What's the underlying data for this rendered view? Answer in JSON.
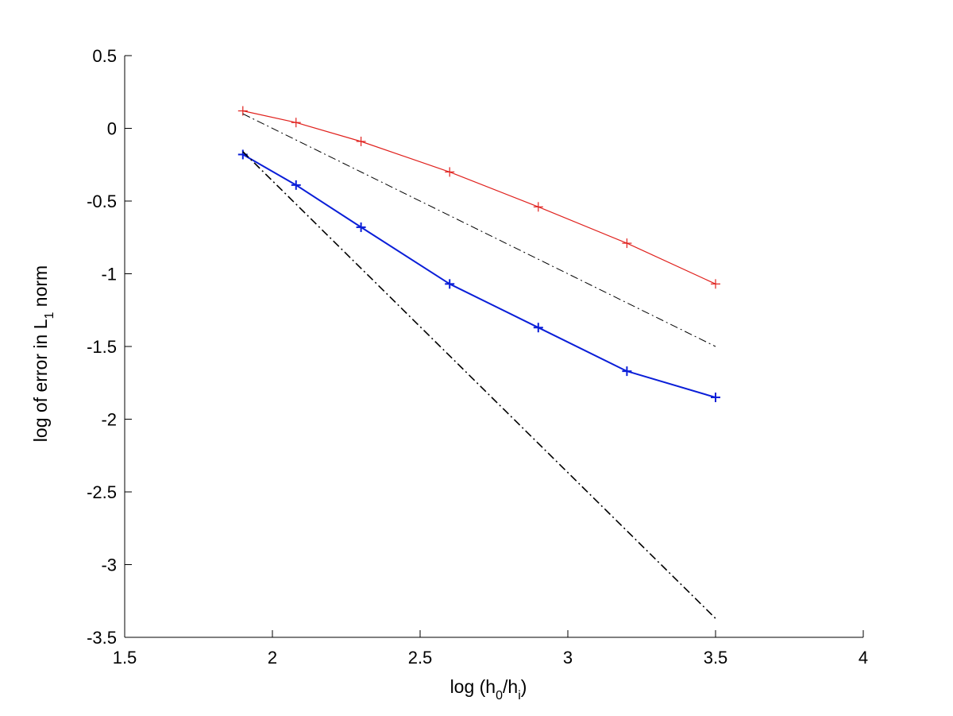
{
  "chart_data": {
    "type": "line",
    "title": "",
    "xlabel": {
      "pre": "log (h",
      "sub1": "0",
      "mid": "/h",
      "sub2": "i",
      "post": ")"
    },
    "ylabel": {
      "pre": "log of error in L",
      "sub": "1",
      "post": " norm"
    },
    "xlim": [
      1.5,
      4
    ],
    "ylim": [
      -3.5,
      0.5
    ],
    "xticks": [
      1.5,
      2,
      2.5,
      3,
      3.5,
      4
    ],
    "xtick_labels": [
      "1.5",
      "2",
      "2.5",
      "3",
      "3.5",
      "4"
    ],
    "yticks": [
      0.5,
      0,
      -0.5,
      -1,
      -1.5,
      -2,
      -2.5,
      -3,
      -3.5
    ],
    "ytick_labels": [
      "0.5",
      "0",
      "-0.5",
      "-1",
      "-1.5",
      "-2",
      "-2.5",
      "-3",
      "-3.5"
    ],
    "grid": false,
    "series": [
      {
        "color": "#e0201c",
        "style": "solid",
        "marker": "+",
        "width": 1.2,
        "x": [
          1.9,
          2.08,
          2.3,
          2.6,
          2.9,
          3.2,
          3.5
        ],
        "y": [
          0.12,
          0.04,
          -0.09,
          -0.3,
          -0.54,
          -0.79,
          -1.07
        ]
      },
      {
        "color": "#0a1ed8",
        "style": "solid",
        "marker": "+",
        "width": 2,
        "x": [
          1.9,
          2.08,
          2.3,
          2.6,
          2.9,
          3.2,
          3.5
        ],
        "y": [
          -0.18,
          -0.39,
          -0.68,
          -1.07,
          -1.37,
          -1.67,
          -1.85
        ]
      },
      {
        "color": "#000000",
        "style": "dashdot",
        "marker": "none",
        "width": 1,
        "x": [
          1.9,
          3.5
        ],
        "y": [
          0.1,
          -1.5
        ]
      },
      {
        "color": "#000000",
        "style": "dashdot",
        "marker": "none",
        "width": 1.6,
        "x": [
          1.9,
          3.5
        ],
        "y": [
          -0.16,
          -3.37
        ]
      }
    ]
  }
}
